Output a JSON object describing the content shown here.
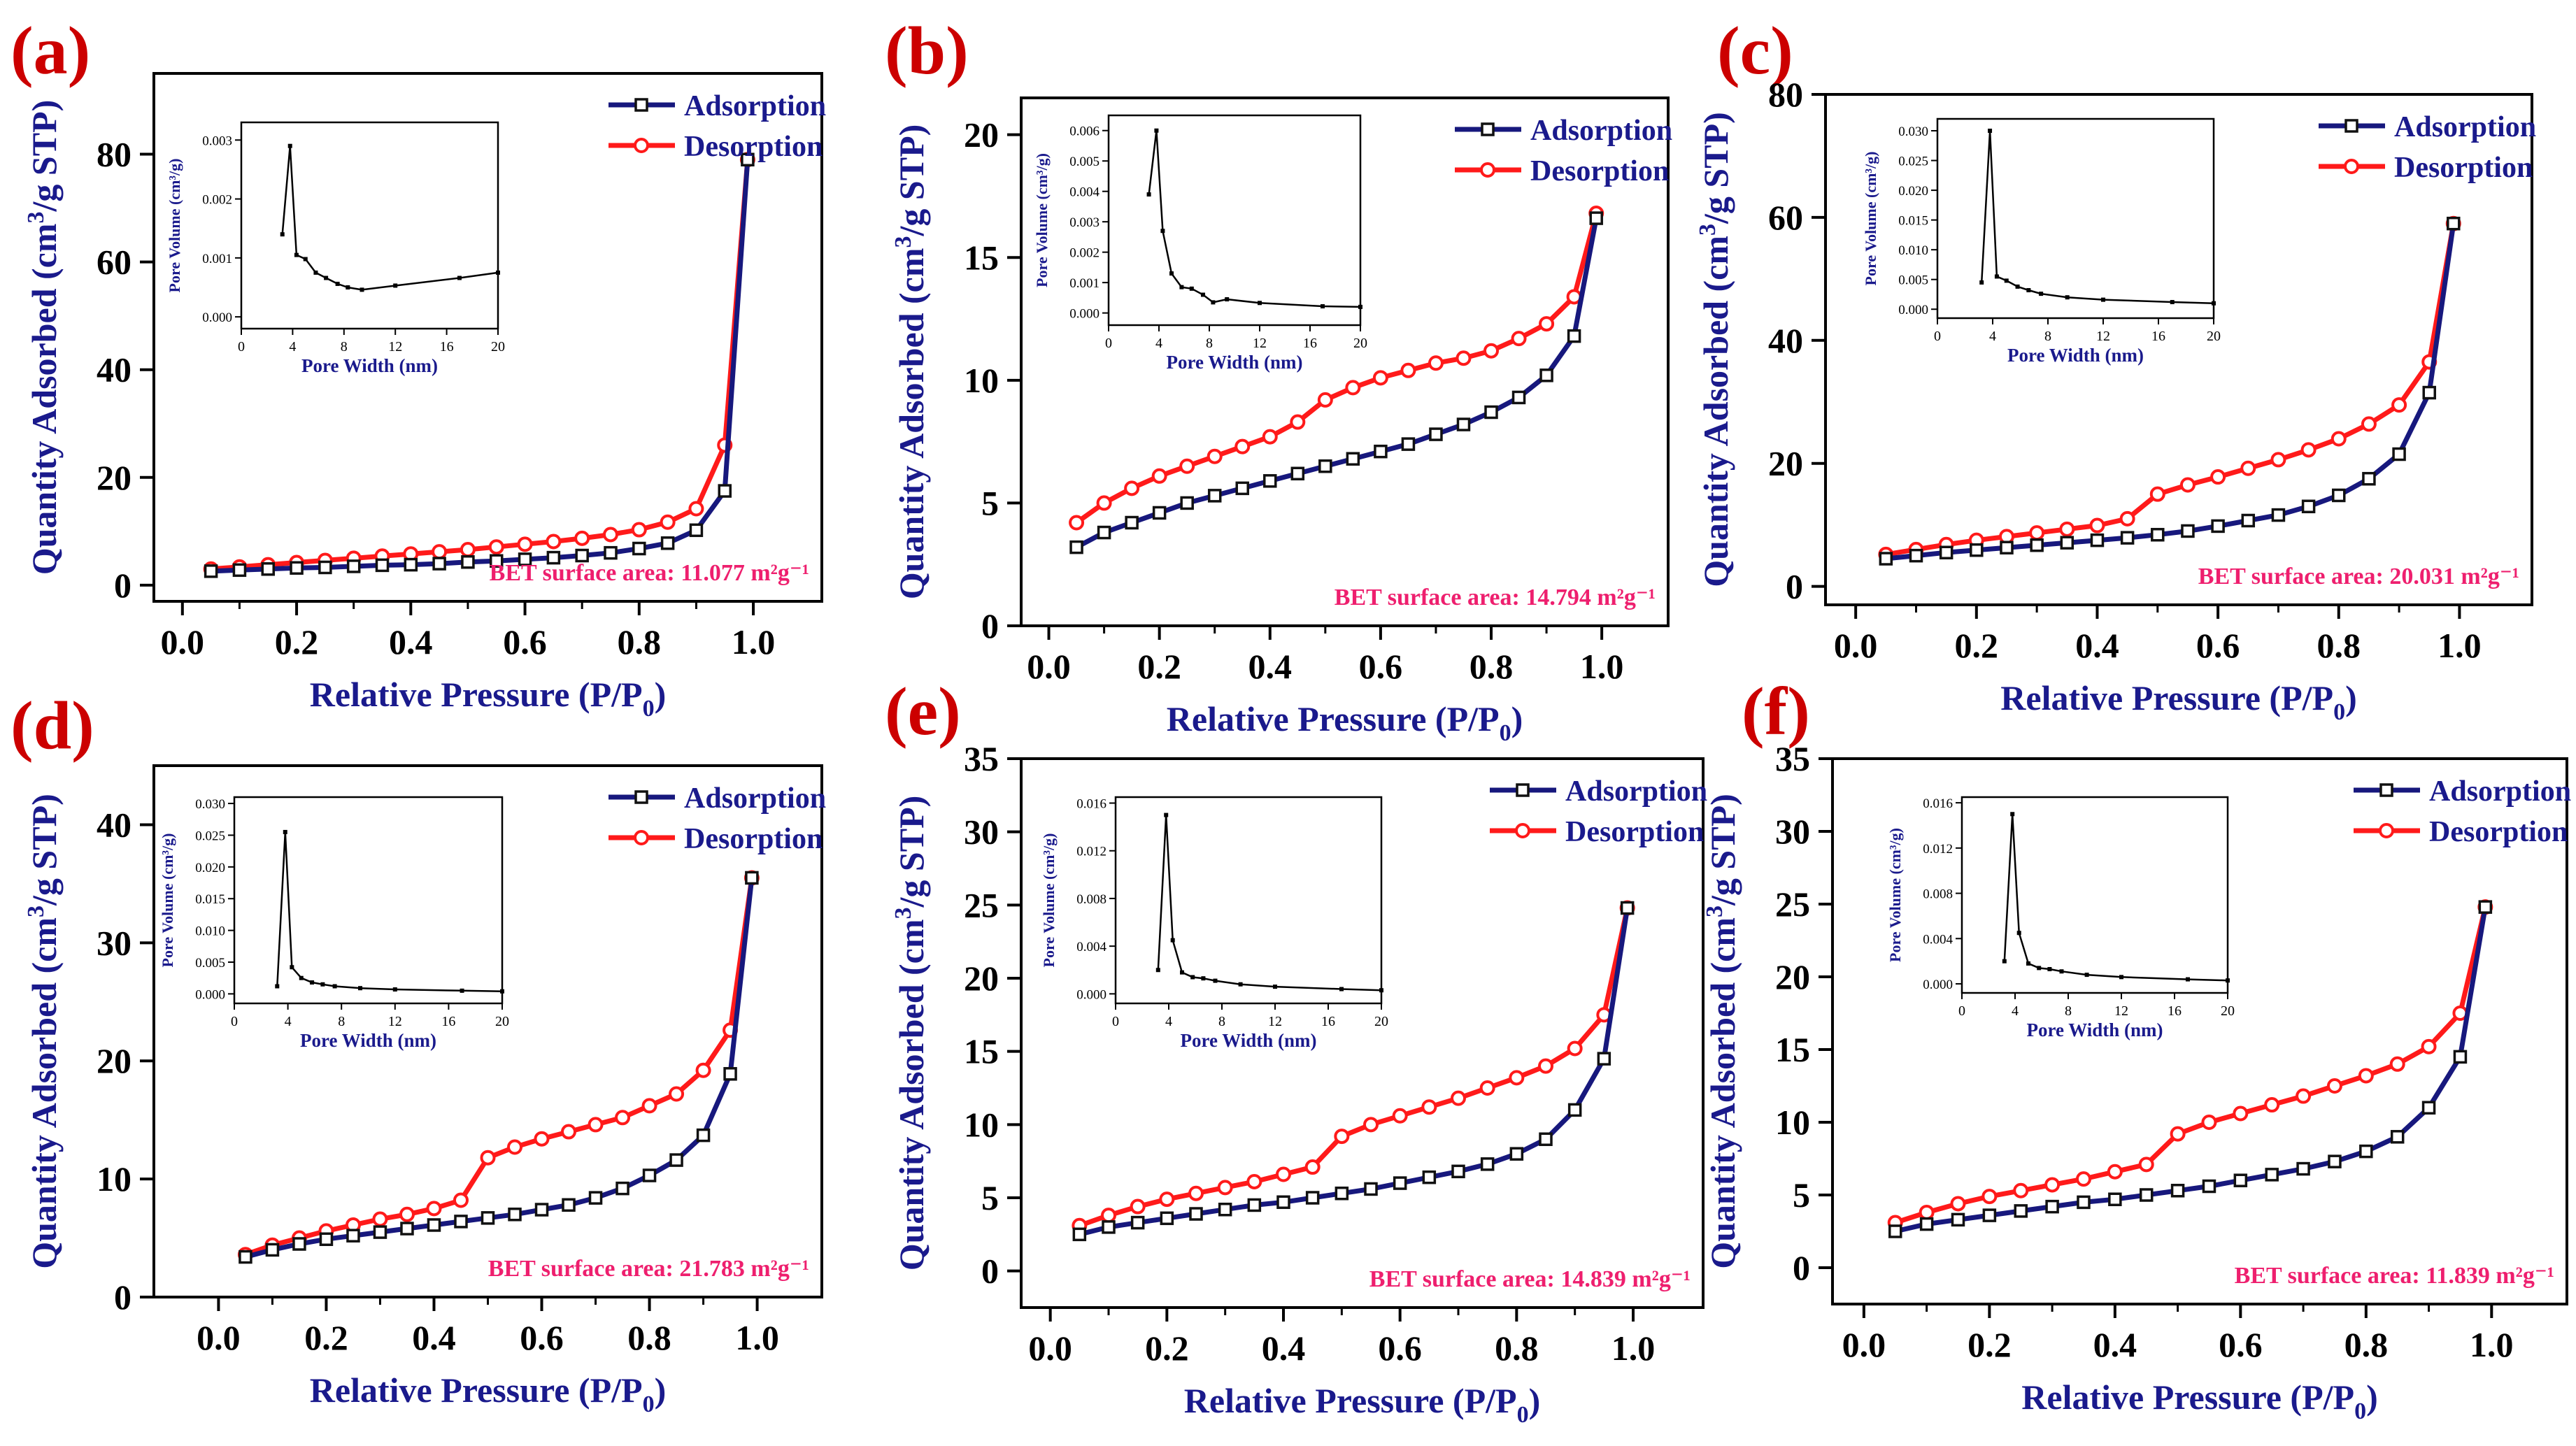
{
  "figure": {
    "common": {
      "xlabel": "Relative Pressure",
      "xlabel_math": "(P/P",
      "xlabel_sub": "0",
      "xlabel_close": ")",
      "ylabel_pre": "Quantity Adsorbed (cm",
      "ylabel_sup": "3",
      "ylabel_post": "/g STP)",
      "inset_xlabel": "Pore Width (nm)",
      "inset_ylabel_default": "Pore Volume (cm³/g)",
      "inset_ylabel_short": "Pore Volume (cm³/g)",
      "legend_adsorption": "Adsorption",
      "legend_desorption": "Desorption",
      "bet_prefix": "BET surface area: ",
      "bet_unit": "m²g⁻¹",
      "inset_xticks": [
        "0",
        "4",
        "8",
        "12",
        "16",
        "20"
      ],
      "colors": {
        "adsorption": "#17187d",
        "desorption": "#ff1a1a",
        "label": "#1a1a8c",
        "bet": "#ee1f6e",
        "panel_label": "#cc0000"
      }
    }
  },
  "chart_data": [
    {
      "panel": "(a)",
      "type": "line",
      "bet_value": "11.077",
      "xlim": [
        -0.05,
        1.12
      ],
      "xticks": [
        "0.0",
        "0.2",
        "0.4",
        "0.6",
        "0.8",
        "1.0"
      ],
      "ylim": [
        -3,
        95
      ],
      "yticks": [
        "0",
        "20",
        "40",
        "60",
        "80"
      ],
      "series": [
        {
          "name": "Adsorption",
          "x": [
            0.05,
            0.1,
            0.15,
            0.2,
            0.25,
            0.3,
            0.35,
            0.4,
            0.45,
            0.5,
            0.55,
            0.6,
            0.65,
            0.7,
            0.75,
            0.8,
            0.85,
            0.9,
            0.95,
            0.99
          ],
          "y": [
            2.6,
            2.8,
            3.0,
            3.2,
            3.3,
            3.5,
            3.7,
            3.8,
            4.0,
            4.3,
            4.5,
            4.8,
            5.1,
            5.5,
            6.0,
            6.8,
            7.8,
            10.2,
            17.5,
            79
          ]
        },
        {
          "name": "Desorption",
          "x": [
            0.05,
            0.1,
            0.15,
            0.2,
            0.25,
            0.3,
            0.35,
            0.4,
            0.45,
            0.5,
            0.55,
            0.6,
            0.65,
            0.7,
            0.75,
            0.8,
            0.85,
            0.9,
            0.95,
            0.99
          ],
          "y": [
            3.0,
            3.4,
            3.8,
            4.2,
            4.6,
            5.0,
            5.4,
            5.8,
            6.2,
            6.6,
            7.1,
            7.6,
            8.1,
            8.7,
            9.4,
            10.3,
            11.7,
            14.2,
            26,
            79
          ]
        }
      ],
      "inset": {
        "ylim": [
          -0.0002,
          0.0033
        ],
        "yticks": [
          "0.000",
          "0.001",
          "0.002",
          "0.003"
        ],
        "x": [
          3.2,
          3.8,
          4.3,
          5,
          5.8,
          6.6,
          7.5,
          8.3,
          9.4,
          12,
          17,
          20
        ],
        "y": [
          0.0014,
          0.0029,
          0.00105,
          0.00098,
          0.00075,
          0.00066,
          0.00056,
          0.0005,
          0.00046,
          0.00053,
          0.00066,
          0.00075
        ]
      }
    },
    {
      "panel": "(b)",
      "type": "line",
      "bet_value": "14.794",
      "xlim": [
        -0.05,
        1.12
      ],
      "xticks": [
        "0.0",
        "0.2",
        "0.4",
        "0.6",
        "0.8",
        "1.0"
      ],
      "ylim": [
        0,
        21.5
      ],
      "yticks": [
        "0",
        "5",
        "10",
        "15",
        "20"
      ],
      "series": [
        {
          "name": "Adsorption",
          "x": [
            0.05,
            0.1,
            0.15,
            0.2,
            0.25,
            0.3,
            0.35,
            0.4,
            0.45,
            0.5,
            0.55,
            0.6,
            0.65,
            0.7,
            0.75,
            0.8,
            0.85,
            0.9,
            0.95,
            0.99
          ],
          "y": [
            3.2,
            3.8,
            4.2,
            4.6,
            5.0,
            5.3,
            5.6,
            5.9,
            6.2,
            6.5,
            6.8,
            7.1,
            7.4,
            7.8,
            8.2,
            8.7,
            9.3,
            10.2,
            11.8,
            16.6
          ]
        },
        {
          "name": "Desorption",
          "x": [
            0.05,
            0.1,
            0.15,
            0.2,
            0.25,
            0.3,
            0.35,
            0.4,
            0.45,
            0.5,
            0.55,
            0.6,
            0.65,
            0.7,
            0.75,
            0.8,
            0.85,
            0.9,
            0.95,
            0.99
          ],
          "y": [
            4.2,
            5.0,
            5.6,
            6.1,
            6.5,
            6.9,
            7.3,
            7.7,
            8.3,
            9.2,
            9.7,
            10.1,
            10.4,
            10.7,
            10.9,
            11.2,
            11.7,
            12.3,
            13.4,
            16.8
          ]
        }
      ],
      "inset": {
        "ylim": [
          -0.0004,
          0.0065
        ],
        "yticks": [
          "0.000",
          "0.001",
          "0.002",
          "0.003",
          "0.004",
          "0.005",
          "0.006"
        ],
        "x": [
          3.2,
          3.8,
          4.3,
          5,
          5.8,
          6.6,
          7.5,
          8.3,
          9.4,
          12,
          17,
          20
        ],
        "y": [
          0.0039,
          0.006,
          0.0027,
          0.0013,
          0.00085,
          0.0008,
          0.0006,
          0.00035,
          0.00045,
          0.00033,
          0.00022,
          0.0002
        ]
      }
    },
    {
      "panel": "(c)",
      "type": "line",
      "bet_value": "20.031",
      "xlim": [
        -0.05,
        1.12
      ],
      "xticks": [
        "0.0",
        "0.2",
        "0.4",
        "0.6",
        "0.8",
        "1.0"
      ],
      "ylim": [
        -3,
        80
      ],
      "yticks": [
        "0",
        "20",
        "40",
        "60",
        "80"
      ],
      "series": [
        {
          "name": "Adsorption",
          "x": [
            0.05,
            0.1,
            0.15,
            0.2,
            0.25,
            0.3,
            0.35,
            0.4,
            0.45,
            0.5,
            0.55,
            0.6,
            0.65,
            0.7,
            0.75,
            0.8,
            0.85,
            0.9,
            0.95,
            0.99
          ],
          "y": [
            4.5,
            5.0,
            5.5,
            5.9,
            6.3,
            6.7,
            7.1,
            7.5,
            7.9,
            8.4,
            9.0,
            9.8,
            10.7,
            11.6,
            13.0,
            14.8,
            17.5,
            21.5,
            31.5,
            59
          ]
        },
        {
          "name": "Desorption",
          "x": [
            0.05,
            0.1,
            0.15,
            0.2,
            0.25,
            0.3,
            0.35,
            0.4,
            0.45,
            0.5,
            0.55,
            0.6,
            0.65,
            0.7,
            0.75,
            0.8,
            0.85,
            0.9,
            0.95,
            0.99
          ],
          "y": [
            5.2,
            6.0,
            6.8,
            7.5,
            8.1,
            8.7,
            9.3,
            9.9,
            11.0,
            15.0,
            16.5,
            17.8,
            19.2,
            20.6,
            22.2,
            24.0,
            26.4,
            29.5,
            36.5,
            59
          ]
        }
      ],
      "inset": {
        "ylim": [
          -0.0015,
          0.032
        ],
        "yticks": [
          "0.000",
          "0.005",
          "0.010",
          "0.015",
          "0.020",
          "0.025",
          "0.030"
        ],
        "x": [
          3.2,
          3.8,
          4.3,
          5,
          5.8,
          6.6,
          7.5,
          9.4,
          12,
          17,
          20
        ],
        "y": [
          0.0045,
          0.03,
          0.0055,
          0.0048,
          0.0038,
          0.0032,
          0.0026,
          0.002,
          0.0016,
          0.0012,
          0.001
        ]
      }
    },
    {
      "panel": "(d)",
      "type": "line",
      "bet_value": "21.783",
      "xlim": [
        -0.12,
        1.12
      ],
      "xticks": [
        "0.0",
        "0.2",
        "0.4",
        "0.6",
        "0.8",
        "1.0"
      ],
      "ylim": [
        0,
        45
      ],
      "yticks": [
        "0",
        "10",
        "20",
        "30",
        "40"
      ],
      "series": [
        {
          "name": "Adsorption",
          "x": [
            0.05,
            0.1,
            0.15,
            0.2,
            0.25,
            0.3,
            0.35,
            0.4,
            0.45,
            0.5,
            0.55,
            0.6,
            0.65,
            0.7,
            0.75,
            0.8,
            0.85,
            0.9,
            0.95,
            0.99
          ],
          "y": [
            3.4,
            4.0,
            4.5,
            4.9,
            5.2,
            5.5,
            5.8,
            6.1,
            6.4,
            6.7,
            7.0,
            7.4,
            7.8,
            8.4,
            9.2,
            10.3,
            11.6,
            13.7,
            18.9,
            35.5
          ]
        },
        {
          "name": "Desorption",
          "x": [
            0.05,
            0.1,
            0.15,
            0.2,
            0.25,
            0.3,
            0.35,
            0.4,
            0.45,
            0.5,
            0.55,
            0.6,
            0.65,
            0.7,
            0.75,
            0.8,
            0.85,
            0.9,
            0.95,
            0.99
          ],
          "y": [
            3.6,
            4.4,
            5.0,
            5.6,
            6.1,
            6.6,
            7.0,
            7.5,
            8.2,
            11.8,
            12.7,
            13.4,
            14.0,
            14.6,
            15.2,
            16.2,
            17.2,
            19.2,
            22.6,
            35.5
          ]
        }
      ],
      "inset": {
        "ylim": [
          -0.0015,
          0.031
        ],
        "yticks": [
          "0.000",
          "0.005",
          "0.010",
          "0.015",
          "0.020",
          "0.025",
          "0.030"
        ],
        "x": [
          3.2,
          3.8,
          4.3,
          5,
          5.8,
          6.6,
          7.5,
          9.4,
          12,
          17,
          20
        ],
        "y": [
          0.0012,
          0.0255,
          0.0042,
          0.0025,
          0.0018,
          0.0015,
          0.0012,
          0.0009,
          0.0007,
          0.0005,
          0.0004
        ]
      }
    },
    {
      "panel": "(e)",
      "type": "line",
      "bet_value": "14.839",
      "xlim": [
        -0.05,
        1.12
      ],
      "xticks": [
        "0.0",
        "0.2",
        "0.4",
        "0.6",
        "0.8",
        "1.0"
      ],
      "ylim": [
        -2.5,
        35
      ],
      "yticks": [
        "0",
        "5",
        "10",
        "15",
        "20",
        "25",
        "30",
        "35"
      ],
      "series": [
        {
          "name": "Adsorption",
          "x": [
            0.05,
            0.1,
            0.15,
            0.2,
            0.25,
            0.3,
            0.35,
            0.4,
            0.45,
            0.5,
            0.55,
            0.6,
            0.65,
            0.7,
            0.75,
            0.8,
            0.85,
            0.9,
            0.95,
            0.99
          ],
          "y": [
            2.5,
            3.0,
            3.3,
            3.6,
            3.9,
            4.2,
            4.5,
            4.7,
            5.0,
            5.3,
            5.6,
            6.0,
            6.4,
            6.8,
            7.3,
            8.0,
            9.0,
            11.0,
            14.5,
            24.8
          ]
        },
        {
          "name": "Desorption",
          "x": [
            0.05,
            0.1,
            0.15,
            0.2,
            0.25,
            0.3,
            0.35,
            0.4,
            0.45,
            0.5,
            0.55,
            0.6,
            0.65,
            0.7,
            0.75,
            0.8,
            0.85,
            0.9,
            0.95,
            0.99
          ],
          "y": [
            3.1,
            3.8,
            4.4,
            4.9,
            5.3,
            5.7,
            6.1,
            6.6,
            7.1,
            9.2,
            10.0,
            10.6,
            11.2,
            11.8,
            12.5,
            13.2,
            14.0,
            15.2,
            17.5,
            24.8
          ]
        }
      ],
      "inset": {
        "ylim": [
          -0.0008,
          0.0165
        ],
        "yticks": [
          "0.000",
          "0.004",
          "0.008",
          "0.012",
          "0.016"
        ],
        "x": [
          3.2,
          3.8,
          4.3,
          5,
          5.8,
          6.6,
          7.5,
          9.4,
          12,
          17,
          20
        ],
        "y": [
          0.002,
          0.015,
          0.0045,
          0.0018,
          0.0014,
          0.0013,
          0.0011,
          0.0008,
          0.0006,
          0.0004,
          0.0003
        ]
      }
    },
    {
      "panel": "(f)",
      "type": "line",
      "bet_value": "11.839",
      "xlim": [
        -0.05,
        1.12
      ],
      "xticks": [
        "0.0",
        "0.2",
        "0.4",
        "0.6",
        "0.8",
        "1.0"
      ],
      "ylim": [
        -2.5,
        35
      ],
      "yticks": [
        "0",
        "5",
        "10",
        "15",
        "20",
        "25",
        "30",
        "35"
      ],
      "series": [
        {
          "name": "Adsorption",
          "x": [
            0.05,
            0.1,
            0.15,
            0.2,
            0.25,
            0.3,
            0.35,
            0.4,
            0.45,
            0.5,
            0.55,
            0.6,
            0.65,
            0.7,
            0.75,
            0.8,
            0.85,
            0.9,
            0.95,
            0.99
          ],
          "y": [
            2.5,
            3.0,
            3.3,
            3.6,
            3.9,
            4.2,
            4.5,
            4.7,
            5.0,
            5.3,
            5.6,
            6.0,
            6.4,
            6.8,
            7.3,
            8.0,
            9.0,
            11.0,
            14.5,
            24.8
          ]
        },
        {
          "name": "Desorption",
          "x": [
            0.05,
            0.1,
            0.15,
            0.2,
            0.25,
            0.3,
            0.35,
            0.4,
            0.45,
            0.5,
            0.55,
            0.6,
            0.65,
            0.7,
            0.75,
            0.8,
            0.85,
            0.9,
            0.95,
            0.99
          ],
          "y": [
            3.1,
            3.8,
            4.4,
            4.9,
            5.3,
            5.7,
            6.1,
            6.6,
            7.1,
            9.2,
            10.0,
            10.6,
            11.2,
            11.8,
            12.5,
            13.2,
            14.0,
            15.2,
            17.5,
            24.8
          ]
        }
      ],
      "inset": {
        "ylim": [
          -0.0008,
          0.0165
        ],
        "yticks": [
          "0.000",
          "0.004",
          "0.008",
          "0.012",
          "0.016"
        ],
        "x": [
          3.2,
          3.8,
          4.3,
          5,
          5.8,
          6.6,
          7.5,
          9.4,
          12,
          17,
          20
        ],
        "y": [
          0.002,
          0.015,
          0.0045,
          0.0018,
          0.0014,
          0.0013,
          0.0011,
          0.0008,
          0.0006,
          0.0004,
          0.0003
        ]
      }
    }
  ]
}
